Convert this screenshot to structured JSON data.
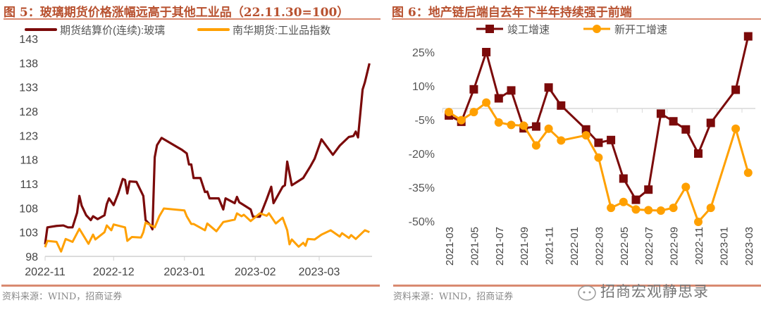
{
  "left": {
    "title": "图 5：玻璃期货价格涨幅远高于其他工业品（22.11.30=100）",
    "source": "资料来源：WIND，招商证券"
  },
  "right": {
    "title": "图 6：地产链后端自去年下半年持续强于前端",
    "source": "资料来源：WIND，招商证券"
  },
  "watermark": "招商宏观静思录",
  "chart_data": [
    {
      "type": "line",
      "xlabel": "",
      "ylabel": "",
      "ylim": [
        98,
        143
      ],
      "yticks": [
        98,
        103,
        108,
        113,
        118,
        123,
        128,
        133,
        138,
        143
      ],
      "xticks": [
        "2022-11",
        "2022-12",
        "2023-01",
        "2023-02",
        "2023-03"
      ],
      "grid": false,
      "legend": "top",
      "series": [
        {
          "name": "期货结算价(连续):玻璃",
          "color": "#7b0a0a",
          "points": [
            [
              "2022-11-01",
              100.5
            ],
            [
              "2022-11-02",
              104
            ],
            [
              "2022-11-06",
              104.3
            ],
            [
              "2022-11-09",
              104.4
            ],
            [
              "2022-11-11",
              104
            ],
            [
              "2022-11-13",
              104
            ],
            [
              "2022-11-15",
              107
            ],
            [
              "2022-11-16",
              110.5
            ],
            [
              "2022-11-17",
              108.5
            ],
            [
              "2022-11-19",
              106.5
            ],
            [
              "2022-11-21",
              105.5
            ],
            [
              "2022-11-22",
              106.3
            ],
            [
              "2022-11-24",
              105.7
            ],
            [
              "2022-11-27",
              106.5
            ],
            [
              "2022-11-28",
              108.8
            ],
            [
              "2022-11-29",
              110
            ],
            [
              "2022-12-01",
              108.6
            ],
            [
              "2022-12-03",
              111
            ],
            [
              "2022-12-05",
              114
            ],
            [
              "2022-12-06",
              113.8
            ],
            [
              "2022-12-07",
              111
            ],
            [
              "2022-12-08",
              113.5
            ],
            [
              "2022-12-11",
              113.4
            ],
            [
              "2022-12-14",
              110.5
            ],
            [
              "2022-12-15",
              105.5
            ],
            [
              "2022-12-17",
              104.5
            ],
            [
              "2022-12-18",
              103.6
            ],
            [
              "2022-12-19",
              118.5
            ],
            [
              "2022-12-20",
              121
            ],
            [
              "2022-12-22",
              122.5
            ],
            [
              "2022-12-31",
              120
            ],
            [
              "2023-01-02",
              119.3
            ],
            [
              "2023-01-03",
              117
            ],
            [
              "2023-01-04",
              117
            ],
            [
              "2023-01-05",
              114.2
            ],
            [
              "2023-01-08",
              114.2
            ],
            [
              "2023-01-10",
              111.3
            ],
            [
              "2023-01-11",
              111.4
            ],
            [
              "2023-01-12",
              110
            ],
            [
              "2023-01-16",
              110
            ],
            [
              "2023-01-18",
              107.7
            ],
            [
              "2023-01-19",
              110
            ],
            [
              "2023-01-23",
              109
            ],
            [
              "2023-01-24",
              110.3
            ],
            [
              "2023-01-25",
              109.2
            ],
            [
              "2023-01-28",
              108.3
            ],
            [
              "2023-01-30",
              107.7
            ],
            [
              "2023-01-31",
              106.2
            ],
            [
              "2023-02-03",
              106.2
            ],
            [
              "2023-02-06",
              109.8
            ],
            [
              "2023-02-08",
              112.4
            ],
            [
              "2023-02-09",
              109
            ],
            [
              "2023-02-13",
              112.4
            ],
            [
              "2023-02-14",
              112.7
            ],
            [
              "2023-02-15",
              117.6
            ],
            [
              "2023-02-17",
              112.7
            ],
            [
              "2023-02-20",
              113.6
            ],
            [
              "2023-02-22",
              114.2
            ],
            [
              "2023-02-25",
              116.5
            ],
            [
              "2023-02-27",
              118.2
            ],
            [
              "2023-03-02",
              122.2
            ],
            [
              "2023-03-07",
              119
            ],
            [
              "2023-03-10",
              120.9
            ],
            [
              "2023-03-14",
              122.7
            ],
            [
              "2023-03-16",
              122.9
            ],
            [
              "2023-03-17",
              123.8
            ],
            [
              "2023-03-18",
              122.6
            ],
            [
              "2023-03-20",
              132.5
            ],
            [
              "2023-03-21",
              134
            ],
            [
              "2023-03-23",
              137.9
            ]
          ]
        },
        {
          "name": "南华期货:工业品指数",
          "color": "#ffa000",
          "points": [
            [
              "2022-11-01",
              99.9
            ],
            [
              "2022-11-02",
              101.2
            ],
            [
              "2022-11-06",
              101
            ],
            [
              "2022-11-08",
              99
            ],
            [
              "2022-11-10",
              101.6
            ],
            [
              "2022-11-13",
              101
            ],
            [
              "2022-11-16",
              103.7
            ],
            [
              "2022-11-20",
              100.6
            ],
            [
              "2022-11-22",
              102.5
            ],
            [
              "2022-11-23",
              101.5
            ],
            [
              "2022-11-27",
              103
            ],
            [
              "2022-11-28",
              104.4
            ],
            [
              "2022-11-30",
              103.4
            ],
            [
              "2022-12-01",
              104.6
            ],
            [
              "2022-12-06",
              104
            ],
            [
              "2022-12-07",
              101.2
            ],
            [
              "2022-12-09",
              102
            ],
            [
              "2022-12-13",
              101.9
            ],
            [
              "2022-12-14",
              103
            ],
            [
              "2022-12-15",
              105
            ],
            [
              "2022-12-19",
              104
            ],
            [
              "2022-12-21",
              106.3
            ],
            [
              "2022-12-23",
              107.9
            ],
            [
              "2023-01-01",
              107.5
            ],
            [
              "2023-01-02",
              106.3
            ],
            [
              "2023-01-04",
              104.7
            ],
            [
              "2023-01-05",
              104.7
            ],
            [
              "2023-01-10",
              103.4
            ],
            [
              "2023-01-11",
              104.8
            ],
            [
              "2023-01-15",
              103.2
            ],
            [
              "2023-01-18",
              105.1
            ],
            [
              "2023-01-23",
              105.6
            ],
            [
              "2023-01-24",
              106.9
            ],
            [
              "2023-01-26",
              106.3
            ],
            [
              "2023-01-27",
              106.6
            ],
            [
              "2023-01-30",
              105.3
            ],
            [
              "2023-02-03",
              106.9
            ],
            [
              "2023-02-06",
              106.4
            ],
            [
              "2023-02-07",
              106.9
            ],
            [
              "2023-02-10",
              104.8
            ],
            [
              "2023-02-13",
              106
            ],
            [
              "2023-02-15",
              103.4
            ],
            [
              "2023-02-16",
              100.5
            ],
            [
              "2023-02-17",
              101.5
            ],
            [
              "2023-02-20",
              100
            ],
            [
              "2023-02-22",
              100.8
            ],
            [
              "2023-02-23",
              100.2
            ],
            [
              "2023-02-24",
              101.6
            ],
            [
              "2023-02-27",
              101.5
            ],
            [
              "2023-03-02",
              102.5
            ],
            [
              "2023-03-06",
              103.4
            ],
            [
              "2023-03-10",
              102.1
            ],
            [
              "2023-03-11",
              102.8
            ],
            [
              "2023-03-14",
              101.8
            ],
            [
              "2023-03-15",
              102.4
            ],
            [
              "2023-03-17",
              101.6
            ],
            [
              "2023-03-21",
              103.4
            ],
            [
              "2023-03-23",
              103
            ]
          ]
        }
      ]
    },
    {
      "type": "line",
      "xlabel": "",
      "ylabel": "",
      "ylim": [
        -50,
        40
      ],
      "yticks": [
        25,
        10,
        -5,
        -20,
        -35,
        -50
      ],
      "ytick_labels": [
        "25%",
        "10%",
        "-5%",
        "-20%",
        "-35%",
        "-50%"
      ],
      "xticks": [
        "2021-03",
        "2021-05",
        "2021-07",
        "2021-09",
        "2021-11",
        "2022-01",
        "2022-03",
        "2022-05",
        "2022-07",
        "2022-09",
        "2022-11",
        "2023-01",
        "2023-03"
      ],
      "grid": false,
      "legend": "top",
      "categories": [
        "2021-03",
        "2021-04",
        "2021-05",
        "2021-06",
        "2021-07",
        "2021-08",
        "2021-09",
        "2021-10",
        "2021-11",
        "2021-12",
        "2022-02",
        "2022-03",
        "2022-04",
        "2022-05",
        "2022-06",
        "2022-07",
        "2022-08",
        "2022-09",
        "2022-10",
        "2022-11",
        "2022-12",
        "2023-02",
        "2023-03"
      ],
      "series": [
        {
          "name": "竣工增速",
          "color": "#7b0a0a",
          "marker": "square",
          "values": [
            -3.1,
            -5.9,
            8.5,
            25,
            4.5,
            8,
            -8.8,
            -8,
            9.3,
            1.3,
            -9.3,
            -15.2,
            -14,
            -31.1,
            -40.5,
            -36,
            -2.3,
            -5.7,
            -9.3,
            -20,
            -6.4,
            8.3,
            32
          ]
        },
        {
          "name": "新开工增速",
          "color": "#ffa000",
          "marker": "circle",
          "values": [
            -1.6,
            -5.2,
            -1.6,
            2.6,
            -6.2,
            -7.3,
            -7.6,
            -16.4,
            -9,
            -14.2,
            -11.9,
            -21.8,
            -44.1,
            -41.5,
            -44.8,
            -45.1,
            -45.3,
            -44.1,
            -34.8,
            -50.3,
            -44.1,
            -9,
            -28.5
          ]
        }
      ]
    }
  ]
}
